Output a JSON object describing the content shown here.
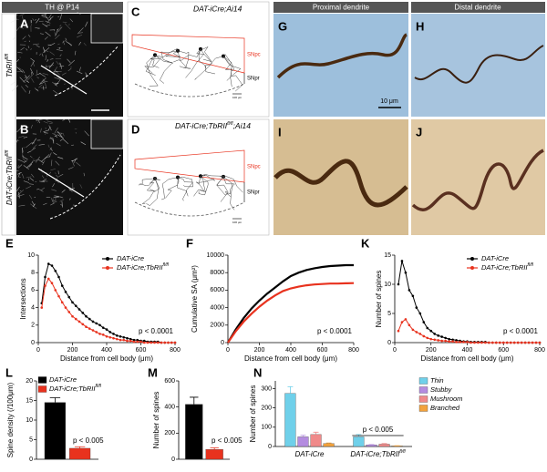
{
  "images": {
    "th_header": "TH @ P14",
    "A": {
      "letter": "A",
      "label": "TbRII",
      "label_sup": "fl/fl"
    },
    "B": {
      "letter": "B",
      "label": "DAT-iCre;TbRII",
      "label_sup": "fl/fl"
    },
    "C": {
      "letter": "C",
      "label": "DAT-iCre;Ai14",
      "snpc": "SNpc",
      "snpr": "SNpr",
      "scale": "100 μm"
    },
    "D": {
      "letter": "D",
      "label": "DAT-iCre;TbRII",
      "label_sup": "fl/fl",
      "label_tail": ";Ai14",
      "snpc": "SNpc",
      "snpr": "SNpr",
      "scale": "100 μm"
    },
    "G": {
      "letter": "G",
      "header": "Proximal dendrite",
      "scale": "10 μm"
    },
    "H": {
      "letter": "H",
      "header": "Distal dendrite"
    },
    "I": {
      "letter": "I"
    },
    "J": {
      "letter": "J"
    }
  },
  "chart_data": [
    {
      "type": "line",
      "letter": "E",
      "xlabel": "Distance from cell body (μm)",
      "ylabel": "Intersections",
      "annotation": "p < 0.0001",
      "xlim": [
        0,
        800
      ],
      "xticks": [
        0,
        200,
        400,
        600,
        800
      ],
      "ylim": [
        0,
        10
      ],
      "yticks": [
        0,
        2,
        4,
        6,
        8,
        10
      ],
      "x": [
        20,
        40,
        60,
        80,
        100,
        120,
        140,
        160,
        180,
        200,
        220,
        240,
        260,
        280,
        300,
        320,
        340,
        360,
        380,
        400,
        420,
        440,
        460,
        480,
        500,
        520,
        540,
        560,
        580,
        600,
        620,
        640,
        660,
        680,
        700,
        720,
        740,
        760,
        780,
        800
      ],
      "series": [
        {
          "name": "DAT-iCre",
          "color": "#000000",
          "values": [
            4.5,
            7.5,
            9,
            8.8,
            8.2,
            7.5,
            6.5,
            5.8,
            5.2,
            4.6,
            4.2,
            3.8,
            3.4,
            3.0,
            2.7,
            2.4,
            2.2,
            2.0,
            1.7,
            1.5,
            1.2,
            1.0,
            0.8,
            0.7,
            0.6,
            0.5,
            0.4,
            0.3,
            0.3,
            0.2,
            0.2,
            0.1,
            0.1,
            0.1,
            0.1,
            0,
            0,
            0,
            0,
            0
          ]
        },
        {
          "name": "DAT-iCre;TbRII",
          "name_sup": "fl/fl",
          "color": "#e8321e",
          "values": [
            4,
            6.5,
            7.3,
            6.8,
            6.0,
            5.3,
            4.6,
            4.0,
            3.5,
            3.0,
            2.7,
            2.4,
            2.1,
            1.8,
            1.6,
            1.4,
            1.2,
            1.0,
            0.9,
            0.7,
            0.6,
            0.5,
            0.4,
            0.3,
            0.3,
            0.2,
            0.2,
            0.1,
            0.1,
            0.1,
            0,
            0,
            0,
            0,
            0,
            0,
            0,
            0,
            0,
            0
          ]
        }
      ]
    },
    {
      "type": "line",
      "letter": "F",
      "xlabel": "Distance from cell body (μm)",
      "ylabel": "Cumulative SA (μm²)",
      "annotation": "p < 0.0001",
      "xlim": [
        0,
        800
      ],
      "xticks": [
        0,
        200,
        400,
        600,
        800
      ],
      "ylim": [
        0,
        10000
      ],
      "yticks": [
        0,
        2000,
        4000,
        6000,
        8000,
        10000
      ],
      "x": [
        0,
        50,
        100,
        150,
        200,
        250,
        300,
        350,
        400,
        450,
        500,
        550,
        600,
        650,
        700,
        750,
        800
      ],
      "series": [
        {
          "color": "#000000",
          "values": [
            0,
            1500,
            2800,
            3900,
            4800,
            5600,
            6300,
            7000,
            7600,
            8000,
            8300,
            8500,
            8650,
            8750,
            8800,
            8850,
            8850
          ]
        },
        {
          "color": "#e8321e",
          "values": [
            0,
            1300,
            2400,
            3300,
            4100,
            4800,
            5400,
            5900,
            6200,
            6400,
            6550,
            6650,
            6700,
            6750,
            6750,
            6780,
            6800
          ]
        }
      ]
    },
    {
      "type": "line",
      "letter": "K",
      "xlabel": "Distance from cell body (μm)",
      "ylabel": "Number of spines",
      "annotation": "p < 0.0001",
      "xlim": [
        0,
        800
      ],
      "xticks": [
        0,
        200,
        400,
        600,
        800
      ],
      "ylim": [
        0,
        15
      ],
      "yticks": [
        0,
        5,
        10,
        15
      ],
      "x": [
        20,
        40,
        60,
        80,
        100,
        120,
        140,
        160,
        180,
        200,
        220,
        240,
        260,
        280,
        300,
        320,
        340,
        360,
        380,
        400,
        420,
        440,
        460,
        480,
        500,
        520,
        540,
        560,
        580,
        600,
        620,
        640,
        660,
        680,
        700,
        720,
        740,
        760,
        780,
        800
      ],
      "series": [
        {
          "name": "DAT-iCre",
          "color": "#000000",
          "values": [
            10,
            14,
            12,
            9,
            8,
            6,
            5,
            3.5,
            2.5,
            2,
            1.5,
            1.2,
            1,
            0.8,
            0.6,
            0.5,
            0.4,
            0.3,
            0.2,
            0.2,
            0.1,
            0.1,
            0.1,
            0.1,
            0.1,
            0,
            0,
            0,
            0,
            0,
            0,
            0,
            0,
            0,
            0,
            0,
            0,
            0,
            0,
            0
          ]
        },
        {
          "name": "DAT-iCre;TbRII",
          "name_sup": "fl/fl",
          "color": "#e8321e",
          "values": [
            2,
            3.5,
            4,
            3,
            2.2,
            1.8,
            1.5,
            1.1,
            0.8,
            0.6,
            0.5,
            0.4,
            0.3,
            0.3,
            0.2,
            0.2,
            0.1,
            0.1,
            0.1,
            0.1,
            0,
            0,
            0,
            0,
            0,
            0,
            0,
            0,
            0,
            0,
            0,
            0,
            0,
            0,
            0,
            0,
            0,
            0,
            0,
            0
          ]
        }
      ]
    },
    {
      "type": "bar",
      "letter": "L",
      "ylabel": "Spine density (/100μm)",
      "annotation": "p < 0.005",
      "ylim": [
        0,
        20
      ],
      "yticks": [
        0,
        5,
        10,
        15,
        20
      ],
      "categories": [
        null
      ],
      "series": [
        {
          "name": "DAT-iCre",
          "color": "#000000",
          "values": [
            14.5
          ],
          "errors": [
            1.2
          ]
        },
        {
          "name": "DAT-iCre;TbRII",
          "name_sup": "fl/fl",
          "color": "#e8321e",
          "values": [
            2.8
          ],
          "errors": [
            0.4
          ]
        }
      ]
    },
    {
      "type": "bar",
      "letter": "M",
      "ylabel": "Number of spines",
      "annotation": "p < 0.005",
      "ylim": [
        0,
        600
      ],
      "yticks": [
        0,
        200,
        400,
        600
      ],
      "categories": [
        null
      ],
      "series": [
        {
          "color": "#000000",
          "values": [
            420
          ],
          "errors": [
            55
          ]
        },
        {
          "color": "#e8321e",
          "values": [
            75
          ],
          "errors": [
            12
          ]
        }
      ]
    },
    {
      "type": "bar",
      "letter": "N",
      "ylabel": "Number of spines",
      "annotation": "p < 0.005",
      "ylim": [
        0,
        340
      ],
      "yticks": [
        0,
        100,
        200,
        300
      ],
      "categories": [
        "DAT-iCre",
        "DAT-iCre;TbRII"
      ],
      "category_sups": [
        null,
        "fl/fl"
      ],
      "series": [
        {
          "name": "Thin",
          "color": "#6fd0ea",
          "values": [
            275,
            50
          ],
          "errors": [
            35,
            12
          ]
        },
        {
          "name": "Stubby",
          "color": "#b48ce0",
          "values": [
            50,
            8
          ],
          "errors": [
            8,
            2
          ]
        },
        {
          "name": "Mushroom",
          "color": "#f08a8a",
          "values": [
            62,
            12
          ],
          "errors": [
            12,
            3
          ]
        },
        {
          "name": "Branched",
          "color": "#f2a23c",
          "values": [
            15,
            3
          ],
          "errors": [
            3,
            1
          ]
        }
      ]
    }
  ]
}
